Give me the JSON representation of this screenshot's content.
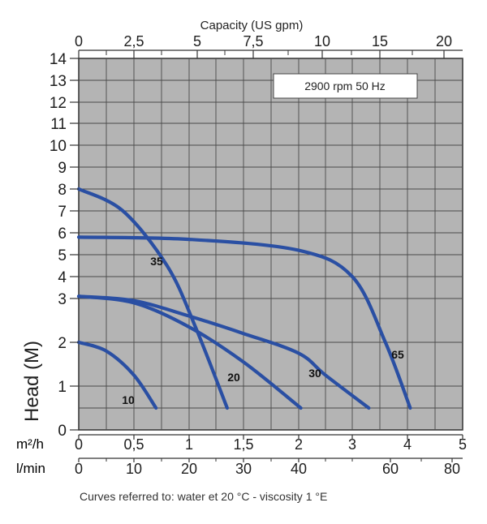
{
  "chart_data": {
    "type": "line",
    "annotation": "2900 rpm 50 Hz",
    "ylabel": "Head (M)",
    "footnote": "Curves referred to: water et 20 °C - viscosity 1 °E",
    "ylim": [
      0,
      14
    ],
    "yticks": [
      "0",
      "1",
      "2",
      "3",
      "4",
      "5",
      "6",
      "7",
      "8",
      "9",
      "10",
      "11",
      "12",
      "13",
      "14"
    ],
    "x_axes": {
      "top": {
        "label": "Capacity (US gpm)",
        "range": [
          0,
          20
        ],
        "ticks": [
          "0",
          "2,5",
          "5",
          "7,5",
          "10",
          "15",
          "20"
        ],
        "tick_values": [
          0,
          2.5,
          5,
          7.5,
          10,
          15,
          20
        ]
      },
      "m3h": {
        "label": "m²/h",
        "range": [
          0,
          5
        ],
        "ticks": [
          "0",
          "0,5",
          "1",
          "1,5",
          "2",
          "3",
          "4",
          "5"
        ],
        "tick_values": [
          0,
          0.5,
          1,
          1.5,
          2,
          3,
          4,
          5
        ]
      },
      "lmin": {
        "label": "l/min",
        "range": [
          0,
          80
        ],
        "ticks": [
          "0",
          "10",
          "20",
          "30",
          "40",
          "60",
          "80"
        ],
        "tick_values": [
          0,
          10,
          20,
          30,
          40,
          60,
          80
        ]
      }
    },
    "grid": true,
    "series": [
      {
        "name": "10",
        "x": [
          0,
          0.25,
          0.5,
          0.7
        ],
        "y": [
          2.0,
          1.8,
          1.25,
          0.5
        ]
      },
      {
        "name": "20",
        "x": [
          0,
          0.5,
          1.0,
          1.5,
          2.04
        ],
        "y": [
          3.1,
          2.9,
          2.35,
          1.55,
          0.5
        ]
      },
      {
        "name": "30",
        "x": [
          0,
          0.5,
          1.0,
          1.5,
          2.0,
          2.5,
          3.3
        ],
        "y": [
          3.1,
          2.95,
          2.6,
          2.2,
          1.75,
          1.25,
          0.5
        ]
      },
      {
        "name": "35",
        "x": [
          0,
          0.4,
          0.8,
          1.05,
          1.35
        ],
        "y": [
          8.0,
          7.0,
          4.5,
          2.4,
          0.5
        ]
      },
      {
        "name": "65",
        "x": [
          0,
          1.0,
          2.0,
          3.0,
          3.6,
          4.05
        ],
        "y": [
          5.8,
          5.7,
          5.2,
          4.0,
          2.0,
          0.5
        ]
      }
    ],
    "line_color": "#2a4fa3"
  }
}
